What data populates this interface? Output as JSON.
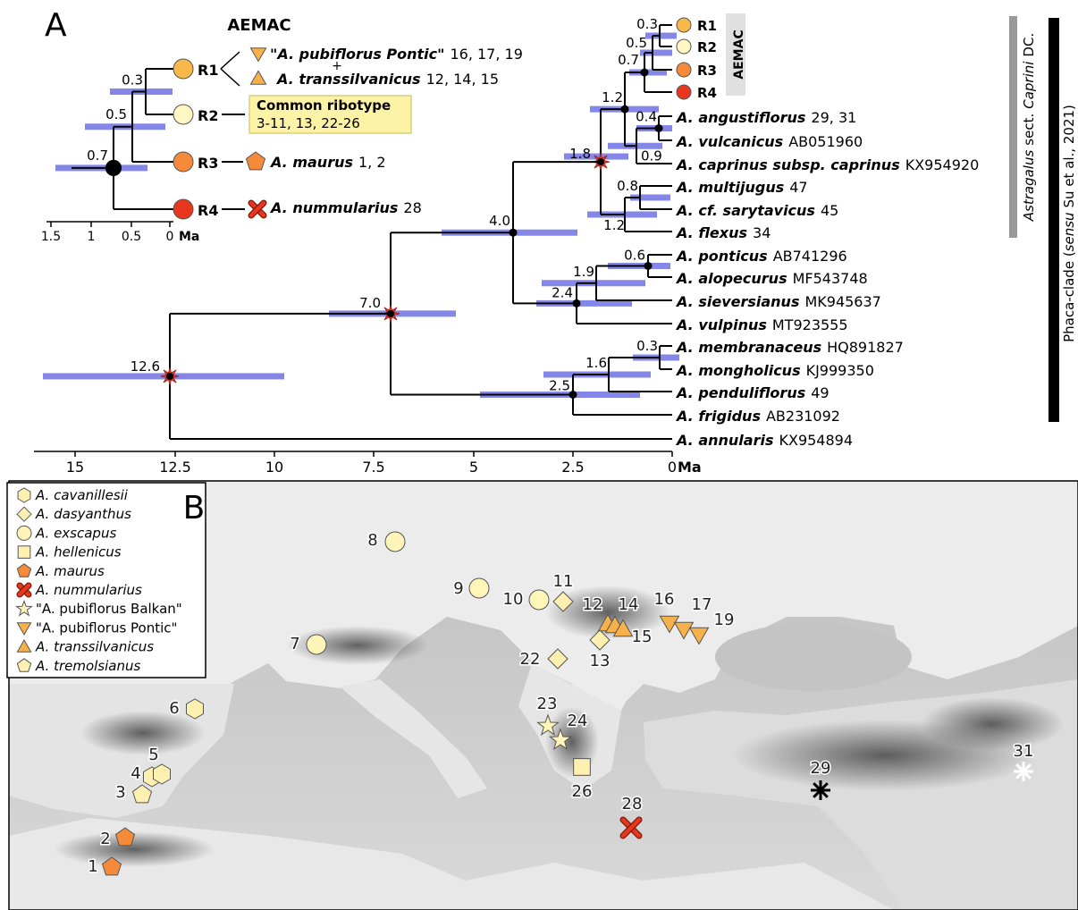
{
  "panel_a": {
    "label": "A",
    "inset": {
      "title": "AEMAC",
      "node_ages": [
        "0.3",
        "0.5",
        "0.7"
      ],
      "ribotypes": [
        "R1",
        "R2",
        "R3",
        "R4"
      ],
      "r1_taxa": [
        {
          "name": "\"A. pubiflorus Pontic\"",
          "ref": "16, 17, 19"
        },
        {
          "name": "A. transsilvanicus",
          "ref": "12, 14, 15"
        }
      ],
      "plus": "+",
      "common_ribotype": {
        "title": "Common ribotype",
        "ref": "3-11, 13, 22-26"
      },
      "r3_taxon": {
        "name": "A. maurus",
        "ref": "1, 2"
      },
      "r4_taxon": {
        "name": "A. nummularius",
        "ref": "28"
      },
      "axis": {
        "ticks": [
          "1.5",
          "1",
          "0.5",
          "0"
        ],
        "unit": "Ma"
      }
    },
    "tree": {
      "tips": [
        {
          "name": "R1"
        },
        {
          "name": "R2"
        },
        {
          "name": "R3"
        },
        {
          "name": "R4"
        },
        {
          "name": "A. angustiflorus",
          "ref": "29, 31"
        },
        {
          "name": "A. vulcanicus",
          "ref": "AB051960"
        },
        {
          "name": "A. caprinus subsp. caprinus",
          "ref": "KX954920"
        },
        {
          "name": "A. multijugus",
          "ref": "47"
        },
        {
          "name": "A. cf. sarytavicus",
          "ref": "45"
        },
        {
          "name": "A. flexus",
          "ref": "34"
        },
        {
          "name": "A. ponticus",
          "ref": "AB741296"
        },
        {
          "name": "A. alopecurus",
          "ref": "MF543748"
        },
        {
          "name": "A. sieversianus",
          "ref": "MK945637"
        },
        {
          "name": "A. vulpinus",
          "ref": "MT923555"
        },
        {
          "name": "A. membranaceus",
          "ref": "HQ891827"
        },
        {
          "name": "A. mongholicus",
          "ref": "KJ999350"
        },
        {
          "name": "A. penduliflorus",
          "ref": "49"
        },
        {
          "name": "A. frigidus",
          "ref": "AB231092"
        },
        {
          "name": "A. annularis",
          "ref": "KX954894"
        }
      ],
      "node_ages": [
        "0.3",
        "0.5",
        "0.7",
        "0.4",
        "0.9",
        "1.2",
        "0.8",
        "1.2",
        "1.8",
        "0.6",
        "1.9",
        "2.4",
        "4.0",
        "0.3",
        "1.6",
        "2.5",
        "7.0",
        "12.6"
      ],
      "axis": {
        "ticks": [
          "15",
          "12.5",
          "10",
          "7.5",
          "5",
          "2.5",
          "0"
        ],
        "unit": "Ma"
      }
    },
    "side_labels": {
      "aemac": "AEMAC",
      "caprini": {
        "genus": "Astragalus",
        "rank": "sect.",
        "section": "Caprini",
        "author": "DC."
      },
      "phaca": {
        "prefix": "Phaca-clade (",
        "italic": "sensu",
        "suffix": "Su et al., 2021)"
      }
    }
  },
  "panel_b": {
    "label": "B",
    "legend": [
      "A. cavanillesii",
      "A. dasyanthus",
      "A. exscapus",
      "A. hellenicus",
      "A. maurus",
      "A. nummularius",
      "\"A. pubiflorus Balkan\"",
      "\"A. pubiflorus Pontic\"",
      "A. transsilvanicus",
      "A. tremolsianus"
    ],
    "sites": [
      "1",
      "2",
      "3",
      "4",
      "5",
      "6",
      "7",
      "8",
      "9",
      "10",
      "11",
      "12",
      "13",
      "14",
      "15",
      "16",
      "17",
      "19",
      "22",
      "23",
      "24",
      "26",
      "28",
      "29",
      "31"
    ]
  }
}
